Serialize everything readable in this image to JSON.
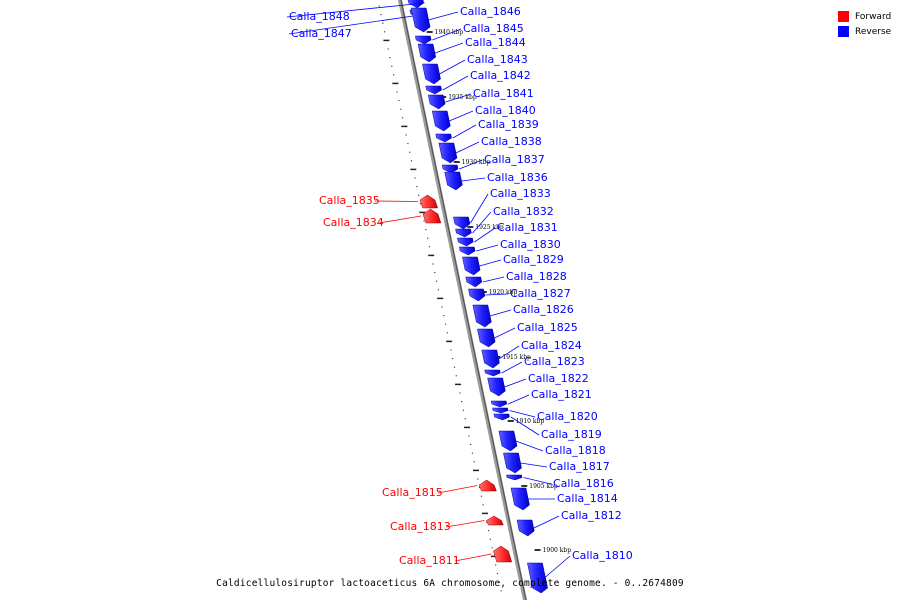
{
  "caption": "Caldicellulosiruptor lactoaceticus 6A chromosome, complete genome. - 0..2674809",
  "legend": [
    {
      "label": "Forward",
      "color": "#ff0000"
    },
    {
      "label": "Reverse",
      "color": "#0000ff"
    }
  ],
  "colors": {
    "forward": "#ff0000",
    "reverse": "#0000ff",
    "backbone": "#888888"
  },
  "ticks": [
    {
      "label": "1940 kbp"
    },
    {
      "label": "1935 kbp"
    },
    {
      "label": "1930 kbp"
    },
    {
      "label": "1925 kbp"
    },
    {
      "label": "1920 kbp"
    },
    {
      "label": "1915 kbp"
    },
    {
      "label": "1910 kbp"
    },
    {
      "label": "1905 kbp"
    },
    {
      "label": "1900 kbp"
    }
  ],
  "genes": [
    {
      "name": "Calla_1848",
      "strand": "reverse"
    },
    {
      "name": "Calla_1847",
      "strand": "reverse"
    },
    {
      "name": "Calla_1846",
      "strand": "reverse"
    },
    {
      "name": "Calla_1845",
      "strand": "reverse"
    },
    {
      "name": "Calla_1844",
      "strand": "reverse"
    },
    {
      "name": "Calla_1843",
      "strand": "reverse"
    },
    {
      "name": "Calla_1842",
      "strand": "reverse"
    },
    {
      "name": "Calla_1841",
      "strand": "reverse"
    },
    {
      "name": "Calla_1840",
      "strand": "reverse"
    },
    {
      "name": "Calla_1839",
      "strand": "reverse"
    },
    {
      "name": "Calla_1838",
      "strand": "reverse"
    },
    {
      "name": "Calla_1837",
      "strand": "reverse"
    },
    {
      "name": "Calla_1836",
      "strand": "reverse"
    },
    {
      "name": "Calla_1835",
      "strand": "forward"
    },
    {
      "name": "Calla_1834",
      "strand": "forward"
    },
    {
      "name": "Calla_1833",
      "strand": "reverse"
    },
    {
      "name": "Calla_1832",
      "strand": "reverse"
    },
    {
      "name": "Calla_1831",
      "strand": "reverse"
    },
    {
      "name": "Calla_1830",
      "strand": "reverse"
    },
    {
      "name": "Calla_1829",
      "strand": "reverse"
    },
    {
      "name": "Calla_1828",
      "strand": "reverse"
    },
    {
      "name": "Calla_1827",
      "strand": "reverse"
    },
    {
      "name": "Calla_1826",
      "strand": "reverse"
    },
    {
      "name": "Calla_1825",
      "strand": "reverse"
    },
    {
      "name": "Calla_1824",
      "strand": "reverse"
    },
    {
      "name": "Calla_1823",
      "strand": "reverse"
    },
    {
      "name": "Calla_1822",
      "strand": "reverse"
    },
    {
      "name": "Calla_1821",
      "strand": "reverse"
    },
    {
      "name": "Calla_1820",
      "strand": "reverse"
    },
    {
      "name": "Calla_1819",
      "strand": "reverse"
    },
    {
      "name": "Calla_1818",
      "strand": "reverse"
    },
    {
      "name": "Calla_1817",
      "strand": "reverse"
    },
    {
      "name": "Calla_1816",
      "strand": "reverse"
    },
    {
      "name": "Calla_1815",
      "strand": "forward"
    },
    {
      "name": "Calla_1814",
      "strand": "reverse"
    },
    {
      "name": "Calla_1813",
      "strand": "forward"
    },
    {
      "name": "Calla_1812",
      "strand": "reverse"
    },
    {
      "name": "Calla_1811",
      "strand": "forward"
    },
    {
      "name": "Calla_1810",
      "strand": "reverse"
    }
  ]
}
